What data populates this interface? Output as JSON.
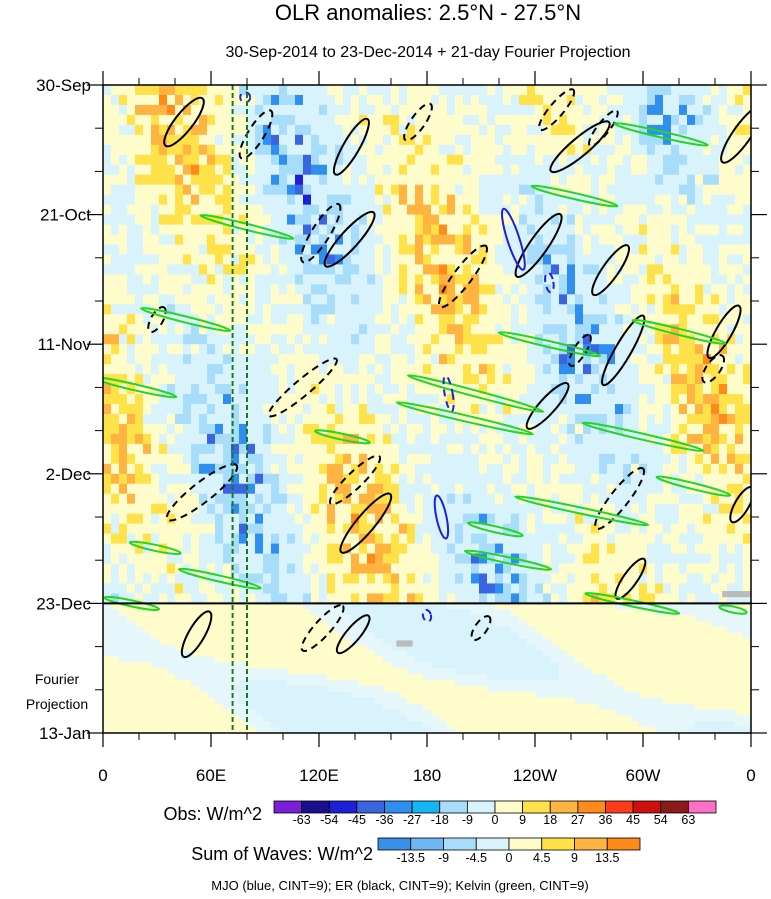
{
  "chart_data": {
    "type": "heatmap",
    "title": "OLR anomalies: 2.5°N - 27.5°N",
    "subtitle": "30-Sep-2014 to 23-Dec-2014 + 21-day Fourier Projection",
    "y_ticks": [
      "30-Sep",
      "21-Oct",
      "11-Nov",
      "2-Dec",
      "23-Dec",
      "13-Jan"
    ],
    "y_tick_values": [
      0,
      21,
      42,
      63,
      84,
      105
    ],
    "y_range_days": [
      0,
      105
    ],
    "x_ticks": [
      "0",
      "60E",
      "120E",
      "180",
      "120W",
      "60W",
      "0"
    ],
    "x_tick_values": [
      0,
      60,
      120,
      180,
      240,
      300,
      360
    ],
    "x_range_deg": [
      0,
      360
    ],
    "projection_label": [
      "Fourier",
      "Projection"
    ],
    "observation_end_day": 84,
    "obs_legend": {
      "label": "Obs: W/m^2",
      "levels": [
        -63,
        -54,
        -45,
        -36,
        -27,
        -18,
        -9,
        0,
        9,
        18,
        27,
        36,
        45,
        54,
        63
      ],
      "colors": [
        "#7a1fd6",
        "#1a0f8c",
        "#1f1fd8",
        "#3a65e0",
        "#2f8ef0",
        "#14b6f5",
        "#a8dcfb",
        "#d8f3fb",
        "#fffccc",
        "#ffe14a",
        "#ffb340",
        "#ff8a1a",
        "#ff3c1a",
        "#cc0f0f",
        "#8b1a1a",
        "#ff6ec7"
      ]
    },
    "waves_legend": {
      "label": "Sum of Waves: W/m^2",
      "levels": [
        -13.5,
        -9,
        -4.5,
        0,
        4.5,
        9,
        13.5
      ],
      "colors": [
        "#3a8fe8",
        "#6fb8f5",
        "#a8dcfb",
        "#d8f3fb",
        "#fffccc",
        "#ffe14a",
        "#ffb340",
        "#ff8a1a"
      ]
    },
    "footer": "MJO (blue, CINT=9); ER (black, CINT=9); Kelvin (green, CINT=9)",
    "series": [
      {
        "name": "MJO",
        "color": "#1f1fd8"
      },
      {
        "name": "ER",
        "color": "#000000"
      },
      {
        "name": "Kelvin",
        "color": "#22d622"
      }
    ],
    "reference_lines_lon": [
      72,
      80
    ],
    "reference_line_color": "#1a7a1a"
  }
}
